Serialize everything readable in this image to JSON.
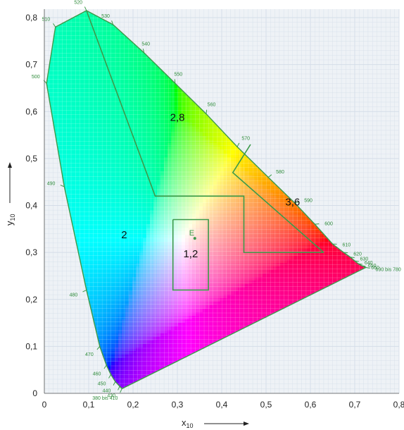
{
  "chart_data": {
    "type": "chromaticity-diagram",
    "xlabel": "x",
    "xlabel_sub": "10",
    "ylabel": "y",
    "ylabel_sub": "10",
    "xlim": [
      0,
      0.8
    ],
    "ylim": [
      0,
      0.8
    ],
    "xticks": [
      "0",
      "0,1",
      "0,2",
      "0,3",
      "0,4",
      "0,5",
      "0,6",
      "0,7",
      "0,8"
    ],
    "yticks": [
      "0",
      "0,1",
      "0,2",
      "0,3",
      "0,4",
      "0,5",
      "0,6",
      "0,7",
      "0,8"
    ],
    "grid": true,
    "spectral_locus": [
      {
        "label": "380 bis 410",
        "x": 0.175,
        "y": 0.01
      },
      {
        "label": "430",
        "x": 0.17,
        "y": 0.015
      },
      {
        "label": "440",
        "x": 0.16,
        "y": 0.025
      },
      {
        "label": "450",
        "x": 0.15,
        "y": 0.04
      },
      {
        "label": "460",
        "x": 0.14,
        "y": 0.06
      },
      {
        "label": "470",
        "x": 0.125,
        "y": 0.1
      },
      {
        "label": "480",
        "x": 0.095,
        "y": 0.22
      },
      {
        "label": "490",
        "x": 0.045,
        "y": 0.44
      },
      {
        "label": "500",
        "x": 0.005,
        "y": 0.66
      },
      {
        "label": "510",
        "x": 0.025,
        "y": 0.78
      },
      {
        "label": "520",
        "x": 0.095,
        "y": 0.815
      },
      {
        "label": "530",
        "x": 0.155,
        "y": 0.785
      },
      {
        "label": "540",
        "x": 0.225,
        "y": 0.725
      },
      {
        "label": "550",
        "x": 0.295,
        "y": 0.66
      },
      {
        "label": "560",
        "x": 0.365,
        "y": 0.595
      },
      {
        "label": "570",
        "x": 0.435,
        "y": 0.525
      },
      {
        "label": "580",
        "x": 0.505,
        "y": 0.46
      },
      {
        "label": "590",
        "x": 0.565,
        "y": 0.405
      },
      {
        "label": "600",
        "x": 0.61,
        "y": 0.36
      },
      {
        "label": "610",
        "x": 0.65,
        "y": 0.318
      },
      {
        "label": "620",
        "x": 0.675,
        "y": 0.3
      },
      {
        "label": "630",
        "x": 0.69,
        "y": 0.29
      },
      {
        "label": "640",
        "x": 0.7,
        "y": 0.282
      },
      {
        "label": "650",
        "x": 0.708,
        "y": 0.276
      },
      {
        "label": "660",
        "x": 0.715,
        "y": 0.272
      },
      {
        "label": "690 bis 780",
        "x": 0.725,
        "y": 0.268
      }
    ],
    "boundaries": [
      {
        "name": "yellow-green-boundary",
        "points": [
          [
            0.095,
            0.815
          ],
          [
            0.25,
            0.42
          ],
          [
            0.45,
            0.42
          ],
          [
            0.45,
            0.3
          ],
          [
            0.63,
            0.3
          ]
        ]
      },
      {
        "name": "orange-boundary",
        "points": [
          [
            0.465,
            0.53
          ],
          [
            0.425,
            0.47
          ],
          [
            0.63,
            0.3
          ]
        ]
      },
      {
        "name": "white-box",
        "points": [
          [
            0.29,
            0.37
          ],
          [
            0.37,
            0.37
          ],
          [
            0.37,
            0.22
          ],
          [
            0.29,
            0.22
          ],
          [
            0.29,
            0.37
          ]
        ]
      }
    ],
    "region_labels": [
      {
        "text": "2,8",
        "x": 0.3,
        "y": 0.58
      },
      {
        "text": "3,6",
        "x": 0.56,
        "y": 0.4
      },
      {
        "text": "2",
        "x": 0.18,
        "y": 0.33
      },
      {
        "text": "1,2",
        "x": 0.33,
        "y": 0.29
      }
    ],
    "white_point": {
      "label": "E",
      "x": 0.333,
      "y": 0.333
    }
  }
}
